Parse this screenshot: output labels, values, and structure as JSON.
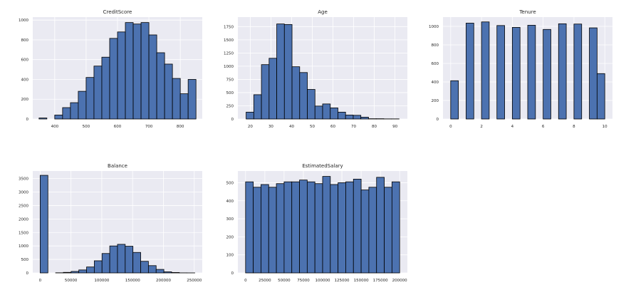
{
  "colors": {
    "background": "#eaeaf2",
    "bar_fill": "#4c72b0",
    "bar_edge": "#000000",
    "grid": "#ffffff"
  },
  "chart_data": [
    {
      "type": "bar",
      "title": "CreditScore",
      "xlim": [
        330,
        870
      ],
      "ylim": [
        0,
        1030
      ],
      "xticks": [
        400,
        500,
        600,
        700,
        800
      ],
      "yticks": [
        0,
        200,
        400,
        600,
        800,
        1000
      ],
      "bin_edges": [
        350,
        375,
        400,
        425,
        450,
        475,
        500,
        525,
        550,
        575,
        600,
        625,
        650,
        675,
        700,
        725,
        750,
        775,
        800,
        825,
        850
      ],
      "values": [
        10,
        0,
        40,
        115,
        165,
        280,
        420,
        535,
        625,
        815,
        880,
        975,
        960,
        975,
        850,
        670,
        555,
        410,
        255,
        400
      ]
    },
    {
      "type": "bar",
      "title": "Age",
      "xlim": [
        14,
        96
      ],
      "ylim": [
        0,
        1930
      ],
      "xticks": [
        20,
        30,
        40,
        50,
        60,
        70,
        80,
        90
      ],
      "yticks": [
        0,
        250,
        500,
        750,
        1000,
        1250,
        1500,
        1750
      ],
      "bin_edges": [
        18,
        21.7,
        25.4,
        29.1,
        32.8,
        36.5,
        40.2,
        43.9,
        47.6,
        51.3,
        55,
        58.7,
        62.4,
        66.1,
        69.8,
        73.5,
        77.2,
        80.9,
        84.6,
        88.3,
        92
      ],
      "values": [
        130,
        460,
        1030,
        1150,
        1800,
        1790,
        990,
        880,
        560,
        245,
        285,
        210,
        130,
        75,
        70,
        35,
        5,
        5,
        2,
        2
      ]
    },
    {
      "type": "bar",
      "title": "Tenure",
      "xlim": [
        -0.5,
        10.5
      ],
      "ylim": [
        0,
        1100
      ],
      "xticks": [
        0,
        2,
        4,
        6,
        8,
        10
      ],
      "yticks": [
        0,
        200,
        400,
        600,
        800,
        1000
      ],
      "bin_edges": [
        0,
        0.5,
        1,
        1.5,
        2,
        2.5,
        3,
        3.5,
        4,
        4.5,
        5,
        5.5,
        6,
        6.5,
        7,
        7.5,
        8,
        8.5,
        9,
        9.5,
        10
      ],
      "values": [
        413,
        0,
        1035,
        0,
        1048,
        0,
        1009,
        0,
        989,
        0,
        1012,
        0,
        967,
        0,
        1028,
        0,
        1025,
        0,
        984,
        490
      ]
    },
    {
      "type": "bar",
      "title": "Balance",
      "xlim": [
        -12000,
        263000
      ],
      "ylim": [
        0,
        3780
      ],
      "xticks": [
        0,
        50000,
        100000,
        150000,
        200000,
        250000
      ],
      "yticks": [
        0,
        500,
        1000,
        1500,
        2000,
        2500,
        3000,
        3500
      ],
      "bin_edges": [
        0,
        12545,
        25090,
        37635,
        50180,
        62725,
        75270,
        87815,
        100360,
        112905,
        125450,
        137995,
        150540,
        163085,
        175630,
        188175,
        200720,
        213265,
        225810,
        238355,
        250900
      ],
      "values": [
        3620,
        0,
        5,
        20,
        55,
        110,
        220,
        450,
        720,
        1000,
        1060,
        990,
        760,
        430,
        270,
        130,
        40,
        15,
        2,
        1
      ]
    },
    {
      "type": "bar",
      "title": "EstimatedSalary",
      "xlim": [
        -10000,
        210000
      ],
      "ylim": [
        0,
        565
      ],
      "xticks": [
        0,
        25000,
        50000,
        75000,
        100000,
        125000,
        150000,
        175000,
        200000
      ],
      "yticks": [
        0,
        100,
        200,
        300,
        400,
        500
      ],
      "bin_edges": [
        0,
        10000,
        20000,
        30000,
        40000,
        50000,
        60000,
        70000,
        80000,
        90000,
        100000,
        110000,
        120000,
        130000,
        140000,
        150000,
        160000,
        170000,
        180000,
        190000,
        200000
      ],
      "values": [
        505,
        475,
        490,
        475,
        495,
        505,
        505,
        515,
        505,
        495,
        535,
        490,
        500,
        505,
        520,
        460,
        475,
        530,
        475,
        505
      ]
    }
  ]
}
